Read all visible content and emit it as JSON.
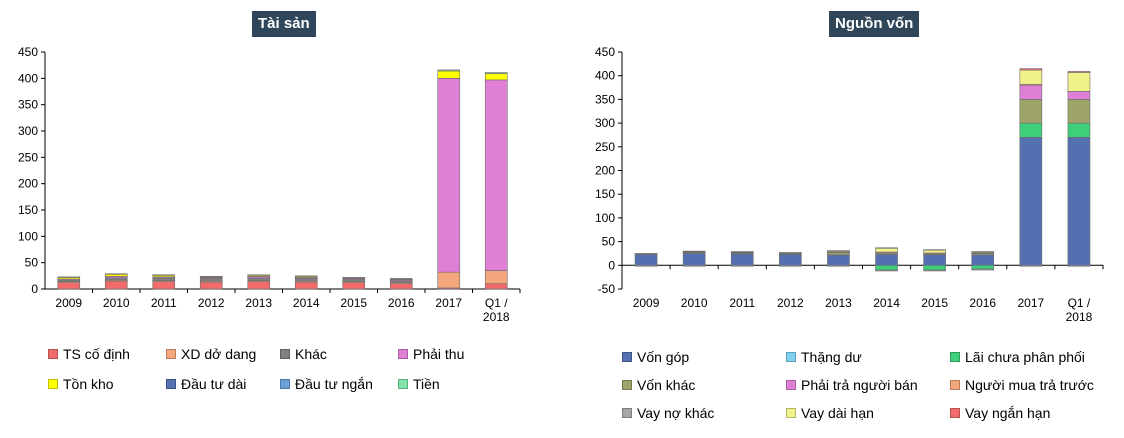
{
  "chart_data": [
    {
      "type": "bar",
      "stacked": true,
      "title": "Tài sản",
      "categories": [
        "2009",
        "2010",
        "2011",
        "2012",
        "2013",
        "2014",
        "2015",
        "2016",
        "2017",
        "Q1 / 2018"
      ],
      "ylim": [
        0,
        450
      ],
      "yticks": [
        "0",
        "50",
        "100",
        "150",
        "200",
        "250",
        "300",
        "350",
        "400",
        "450"
      ],
      "xlabel": "",
      "ylabel": "",
      "legend_position": "bottom",
      "series": [
        {
          "name": "TS cố định",
          "color": "#f26b6b",
          "values": [
            12,
            15,
            14,
            13,
            14,
            13,
            12,
            10,
            2,
            10
          ]
        },
        {
          "name": "XD dở dang",
          "color": "#f4a77c",
          "values": [
            2,
            2,
            2,
            2,
            2,
            2,
            2,
            2,
            30,
            25
          ]
        },
        {
          "name": "Khác",
          "color": "#808080",
          "values": [
            3,
            4,
            5,
            5,
            5,
            5,
            4,
            4,
            0,
            0
          ]
        },
        {
          "name": "Phải thu",
          "color": "#e07fd6",
          "values": [
            2,
            3,
            2,
            2,
            3,
            2,
            2,
            2,
            368,
            362
          ]
        },
        {
          "name": "Tồn kho",
          "color": "#ffff00",
          "values": [
            3,
            4,
            3,
            1,
            2,
            2,
            1,
            1,
            14,
            12
          ]
        },
        {
          "name": "Đầu tư dài",
          "color": "#5470b0",
          "values": [
            0,
            0,
            0,
            0,
            0,
            0,
            0,
            0,
            0,
            0
          ]
        },
        {
          "name": "Đầu tư ngắn",
          "color": "#6aa2d8",
          "values": [
            0,
            0,
            0,
            0,
            0,
            0,
            0,
            0,
            0,
            0
          ]
        },
        {
          "name": "Tiền",
          "color": "#7fe3a8",
          "values": [
            1,
            1,
            1,
            1,
            1,
            1,
            1,
            1,
            2,
            2
          ]
        }
      ]
    },
    {
      "type": "bar",
      "stacked": true,
      "title": "Nguồn vốn",
      "categories": [
        "2009",
        "2010",
        "2011",
        "2012",
        "2013",
        "2014",
        "2015",
        "2016",
        "2017",
        "Q1 / 2018"
      ],
      "ylim": [
        -50,
        450
      ],
      "yticks": [
        "-50",
        "0",
        "50",
        "100",
        "150",
        "200",
        "250",
        "300",
        "350",
        "400",
        "450"
      ],
      "xlabel": "",
      "ylabel": "",
      "legend_position": "bottom",
      "series": [
        {
          "name": "Vốn góp",
          "color": "#5470b0",
          "values": [
            23,
            25,
            24,
            23,
            22,
            23,
            22,
            22,
            270,
            270
          ]
        },
        {
          "name": "Thặng dư",
          "color": "#7fd3f0",
          "values": [
            0,
            0,
            0,
            0,
            0,
            0,
            0,
            0,
            0,
            0
          ]
        },
        {
          "name": "Lãi chưa phân phối",
          "color": "#3ecf7a",
          "values": [
            0,
            0,
            0,
            0,
            0,
            -10,
            -10,
            -8,
            30,
            30
          ]
        },
        {
          "name": "Vốn khác",
          "color": "#9ea36a",
          "values": [
            0,
            2,
            2,
            2,
            5,
            3,
            2,
            3,
            50,
            50
          ]
        },
        {
          "name": "Phải trả người bán",
          "color": "#e07fd6",
          "values": [
            1,
            1,
            1,
            1,
            1,
            2,
            2,
            1,
            30,
            17
          ]
        },
        {
          "name": "Người mua trả trước",
          "color": "#f4a77c",
          "values": [
            0,
            0,
            0,
            0,
            0,
            0,
            0,
            0,
            2,
            0
          ]
        },
        {
          "name": "Vay nợ khác",
          "color": "#a6a6a6",
          "values": [
            -2,
            -2,
            -2,
            -2,
            -2,
            -2,
            -2,
            -2,
            -2,
            -2
          ]
        },
        {
          "name": "Vay dài hạn",
          "color": "#f2f28a",
          "values": [
            0,
            1,
            1,
            0,
            2,
            8,
            6,
            2,
            30,
            40
          ]
        },
        {
          "name": "Vay ngắn hạn",
          "color": "#f26b6b",
          "values": [
            1,
            1,
            1,
            1,
            1,
            1,
            1,
            1,
            3,
            2
          ]
        }
      ]
    }
  ]
}
